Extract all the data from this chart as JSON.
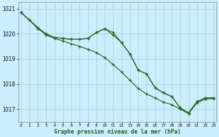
{
  "xlabel": "Graphe pression niveau de la mer (hPa)",
  "bg_color": "#cceeff",
  "grid_color": "#aacccc",
  "line_color": "#2d6b2d",
  "ylim": [
    1016.5,
    1021.25
  ],
  "xlim": [
    -0.3,
    23.3
  ],
  "yticks": [
    1017,
    1018,
    1019,
    1020,
    1021
  ],
  "xtick_labels": [
    "0",
    "1",
    "2",
    "3",
    "4",
    "5",
    "6",
    "7",
    "8",
    "9",
    "10",
    "11",
    "12",
    "13",
    "14",
    "15",
    "16",
    "17",
    "18",
    "19",
    "20",
    "21",
    "22",
    "23"
  ],
  "series1_x": [
    0,
    1,
    2,
    3,
    4,
    5,
    6,
    7,
    8,
    9,
    10,
    11,
    12,
    13,
    14,
    15,
    16,
    17,
    18,
    19,
    20,
    21,
    22,
    23
  ],
  "series1_y": [
    1020.85,
    1020.55,
    1020.25,
    1020.0,
    1019.85,
    1019.82,
    1019.78,
    1019.78,
    1019.82,
    1020.05,
    1020.2,
    1020.05,
    1019.65,
    1019.2,
    1018.55,
    1018.4,
    1017.85,
    1017.65,
    1017.5,
    1017.05,
    1016.85,
    1017.3,
    1017.45,
    1017.45
  ],
  "series2_x": [
    0,
    1,
    2,
    3,
    4,
    5,
    6,
    7,
    8,
    9,
    10,
    11,
    12,
    13,
    14,
    15,
    16,
    17,
    18,
    19,
    20,
    21,
    22,
    23
  ],
  "series2_y": [
    1020.85,
    1020.55,
    1020.2,
    1019.98,
    1019.85,
    1019.82,
    1019.78,
    1019.78,
    1019.82,
    1020.05,
    1020.2,
    1019.95,
    1019.65,
    1019.2,
    1018.55,
    1018.4,
    1017.85,
    1017.65,
    1017.5,
    1017.05,
    1016.85,
    1017.3,
    1017.45,
    1017.45
  ],
  "series3_x": [
    0,
    3,
    4,
    5,
    6,
    7,
    8,
    9,
    10,
    11,
    12,
    13,
    14,
    15,
    16,
    17,
    18,
    19,
    20,
    21,
    22,
    23
  ],
  "series3_y": [
    1020.85,
    1019.95,
    1019.82,
    1019.72,
    1019.6,
    1019.5,
    1019.38,
    1019.25,
    1019.05,
    1018.78,
    1018.48,
    1018.15,
    1017.82,
    1017.6,
    1017.45,
    1017.28,
    1017.18,
    1017.0,
    1016.82,
    1017.25,
    1017.4,
    1017.42
  ]
}
